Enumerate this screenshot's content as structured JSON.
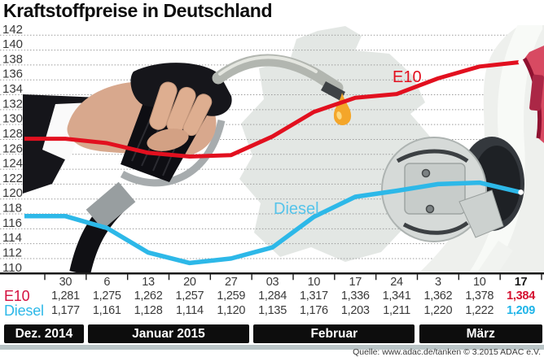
{
  "title": "Kraftstoffpreise in Deutschland",
  "source": {
    "text": "Quelle: www.adac.de/tanken   © 3.2015   ADAC e.V."
  },
  "colors": {
    "e10": "#e2101f",
    "e10_table_label": "#d40f3f",
    "diesel": "#2db8e8",
    "diesel_chart_label": "#56c4ea",
    "month_bar": "#0d0d0d",
    "footer_bar": "#b9c4c6"
  },
  "chart_data": {
    "type": "line",
    "title": "Kraftstoffpreise in Deutschland",
    "ylabel": "",
    "ylim": [
      110,
      142
    ],
    "ytick_step": 2,
    "grid": true,
    "legend_position": "inline-labels",
    "x_tick_labels": [
      "30",
      "6",
      "13",
      "20",
      "27",
      "03",
      "10",
      "17",
      "24",
      "3",
      "10",
      "17"
    ],
    "month_groups": [
      {
        "label": "Dez. 2014",
        "start_col": 0,
        "end_col": 0
      },
      {
        "label": "Januar 2015",
        "start_col": 1,
        "end_col": 4
      },
      {
        "label": "Februar",
        "start_col": 5,
        "end_col": 8
      },
      {
        "label": "März",
        "start_col": 9,
        "end_col": 11
      }
    ],
    "series": [
      {
        "name": "E10",
        "color": "#e2101f",
        "label_color": "#e2101f",
        "values_cent": [
          128.1,
          127.5,
          126.2,
          125.7,
          125.9,
          128.4,
          131.7,
          133.6,
          134.1,
          136.2,
          137.8,
          138.4
        ],
        "values_display": [
          "1,281",
          "1,275",
          "1,262",
          "1,257",
          "1,259",
          "1,284",
          "1,317",
          "1,336",
          "1,341",
          "1,362",
          "1,378",
          "1,384"
        ]
      },
      {
        "name": "Diesel",
        "color": "#2db8e8",
        "label_color": "#56c4ea",
        "values_cent": [
          117.7,
          116.1,
          112.8,
          111.4,
          112.0,
          113.5,
          117.6,
          120.3,
          121.1,
          122.0,
          122.2,
          120.9
        ],
        "values_display": [
          "1,177",
          "1,161",
          "1,128",
          "1,114",
          "1,120",
          "1,135",
          "1,176",
          "1,203",
          "1,211",
          "1,220",
          "1,222",
          "1,209"
        ]
      }
    ],
    "highlight_last_column": true
  }
}
